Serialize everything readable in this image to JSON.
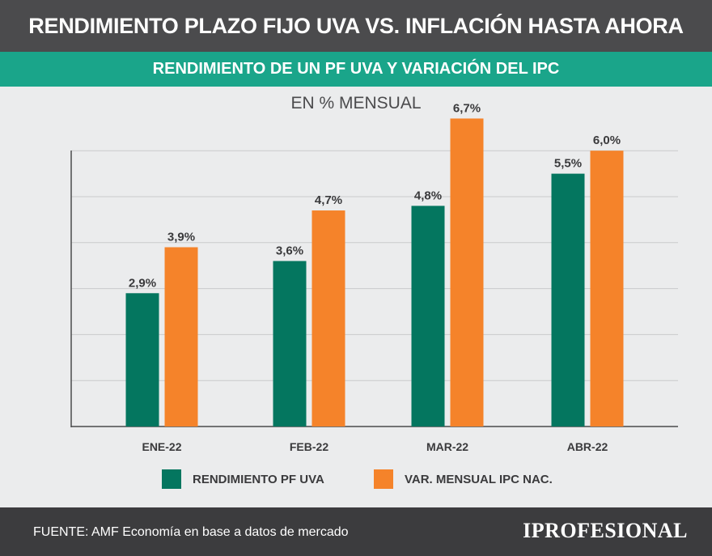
{
  "header": {
    "title": "RENDIMIENTO PLAZO FIJO UVA VS. INFLACIÓN HASTA AHORA",
    "subtitle": "RENDIMIENTO DE UN PF UVA Y VARIACIÓN DEL IPC",
    "unit": "EN % MENSUAL"
  },
  "chart_data": {
    "type": "bar",
    "categories": [
      "ENE-22",
      "FEB-22",
      "MAR-22",
      "ABR-22"
    ],
    "series": [
      {
        "name": "RENDIMIENTO PF UVA",
        "color": "#04765f",
        "values": [
          2.9,
          3.6,
          4.8,
          5.5
        ],
        "labels": [
          "2,9%",
          "3,6%",
          "4,8%",
          "5,5%"
        ]
      },
      {
        "name": "VAR. MENSUAL IPC NAC.",
        "color": "#f5832a",
        "values": [
          3.9,
          4.7,
          6.7,
          6.0
        ],
        "labels": [
          "3,9%",
          "4,7%",
          "6,7%",
          "6,0%"
        ]
      }
    ],
    "ylim": [
      0,
      7.5
    ],
    "grid": true,
    "legend_position": "bottom-center"
  },
  "legend": {
    "items": [
      {
        "label": "RENDIMIENTO PF UVA",
        "color": "#04765f"
      },
      {
        "label": "VAR. MENSUAL IPC NAC.",
        "color": "#f5832a"
      }
    ]
  },
  "footer": {
    "source": "FUENTE: AMF Economía en base a datos de mercado",
    "brand": "IPROFESIONAL"
  }
}
